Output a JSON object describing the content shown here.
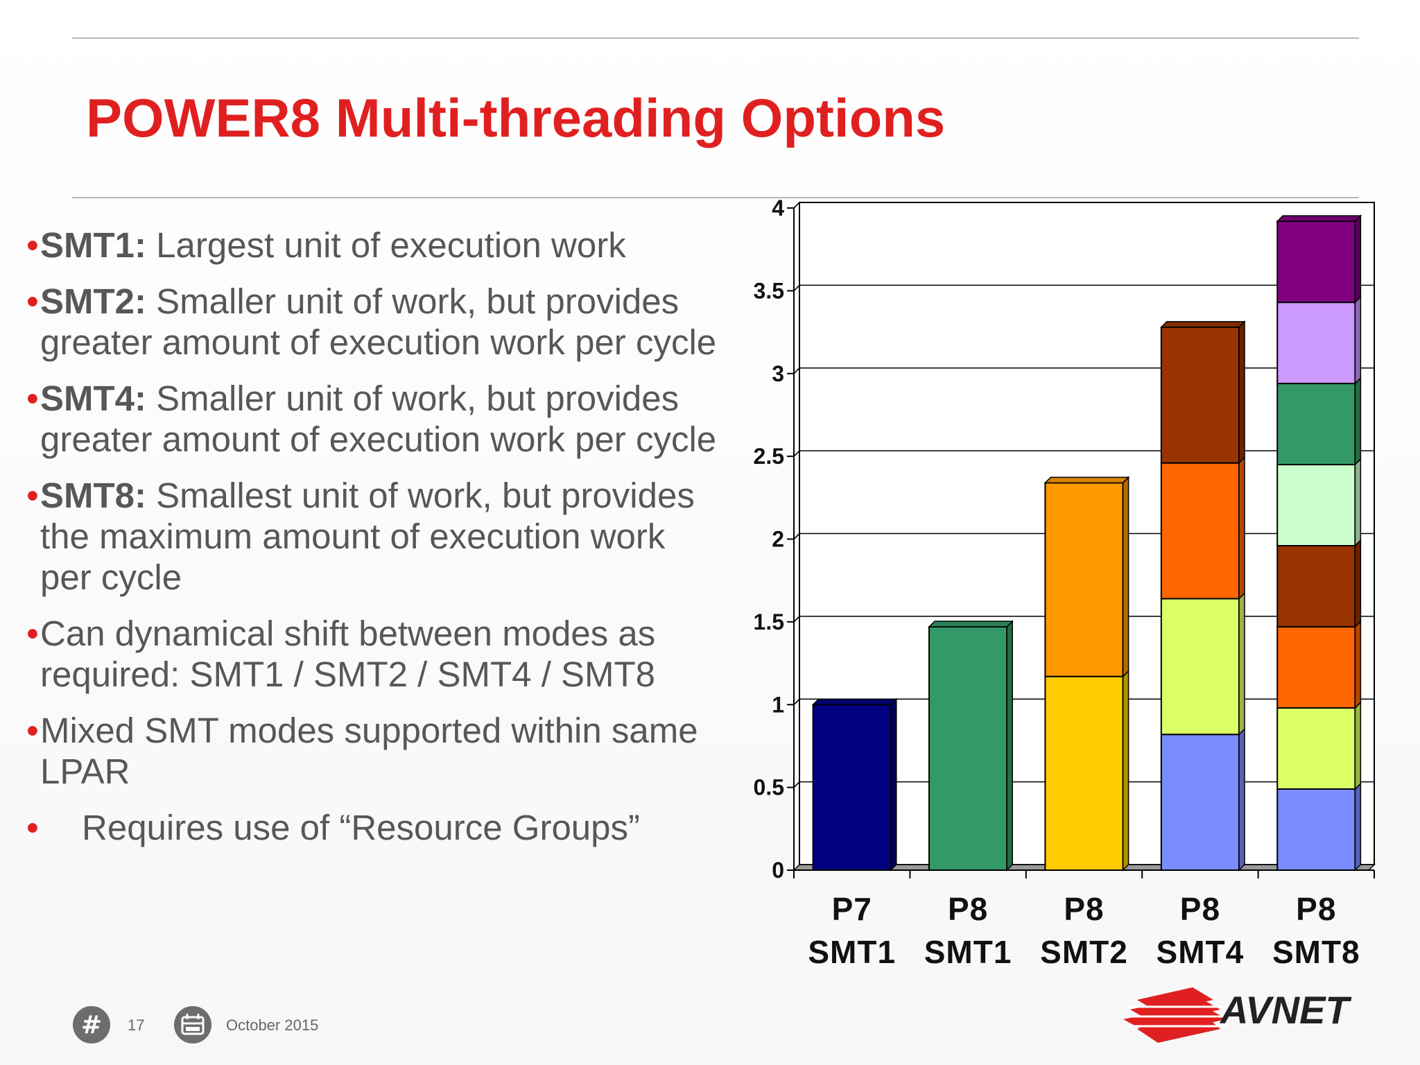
{
  "slide": {
    "title": "POWER8 Multi-threading Options",
    "page_number": "17",
    "date": "October 2015",
    "logo_text": "AVNET",
    "accent_color": "#e02020"
  },
  "bullets": [
    {
      "lead": "SMT1:",
      "text": "  Largest unit of execution work"
    },
    {
      "lead": "SMT2:",
      "text": " Smaller unit of work, but provides greater amount of execution work per cycle"
    },
    {
      "lead": "SMT4:",
      "text": " Smaller unit of work, but provides greater amount of execution work per cycle"
    },
    {
      "lead": "SMT8:",
      "text": " Smallest unit of work, but provides the maximum amount of execution work per cycle"
    },
    {
      "lead": "",
      "text": "Can dynamical shift between modes as required: SMT1 / SMT2 / SMT4 / SMT8"
    },
    {
      "lead": "",
      "text": "Mixed SMT modes supported within same LPAR"
    },
    {
      "lead": "",
      "text": "Requires use of “Resource Groups”",
      "indent": true
    }
  ],
  "chart_data": {
    "type": "bar",
    "stacked": true,
    "style": "3d",
    "categories": [
      [
        "P7",
        "SMT1"
      ],
      [
        "P8",
        "SMT1"
      ],
      [
        "P8",
        "SMT2"
      ],
      [
        "P8",
        "SMT4"
      ],
      [
        "P8",
        "SMT8"
      ]
    ],
    "ylim": [
      0,
      4
    ],
    "yticks": [
      "0",
      "0.5",
      "1",
      "1.5",
      "2",
      "2.5",
      "3",
      "3.5",
      "4"
    ],
    "grid": true,
    "legend": "none",
    "bars": [
      {
        "segments": [
          {
            "value": 1.0,
            "color": "#000080"
          }
        ]
      },
      {
        "segments": [
          {
            "value": 1.47,
            "color": "#339966"
          }
        ]
      },
      {
        "segments": [
          {
            "value": 1.17,
            "color": "#ffcc00"
          },
          {
            "value": 1.17,
            "color": "#ff9900"
          }
        ]
      },
      {
        "segments": [
          {
            "value": 0.82,
            "color": "#7b8cff"
          },
          {
            "value": 0.82,
            "color": "#ddff66"
          },
          {
            "value": 0.82,
            "color": "#ff6600"
          },
          {
            "value": 0.82,
            "color": "#993300"
          }
        ]
      },
      {
        "segments": [
          {
            "value": 0.49,
            "color": "#7b8cff"
          },
          {
            "value": 0.49,
            "color": "#ddff66"
          },
          {
            "value": 0.49,
            "color": "#ff6600"
          },
          {
            "value": 0.49,
            "color": "#993300"
          },
          {
            "value": 0.49,
            "color": "#ccffcc"
          },
          {
            "value": 0.49,
            "color": "#339966"
          },
          {
            "value": 0.49,
            "color": "#cc99ff"
          },
          {
            "value": 0.49,
            "color": "#800080"
          }
        ]
      }
    ]
  }
}
